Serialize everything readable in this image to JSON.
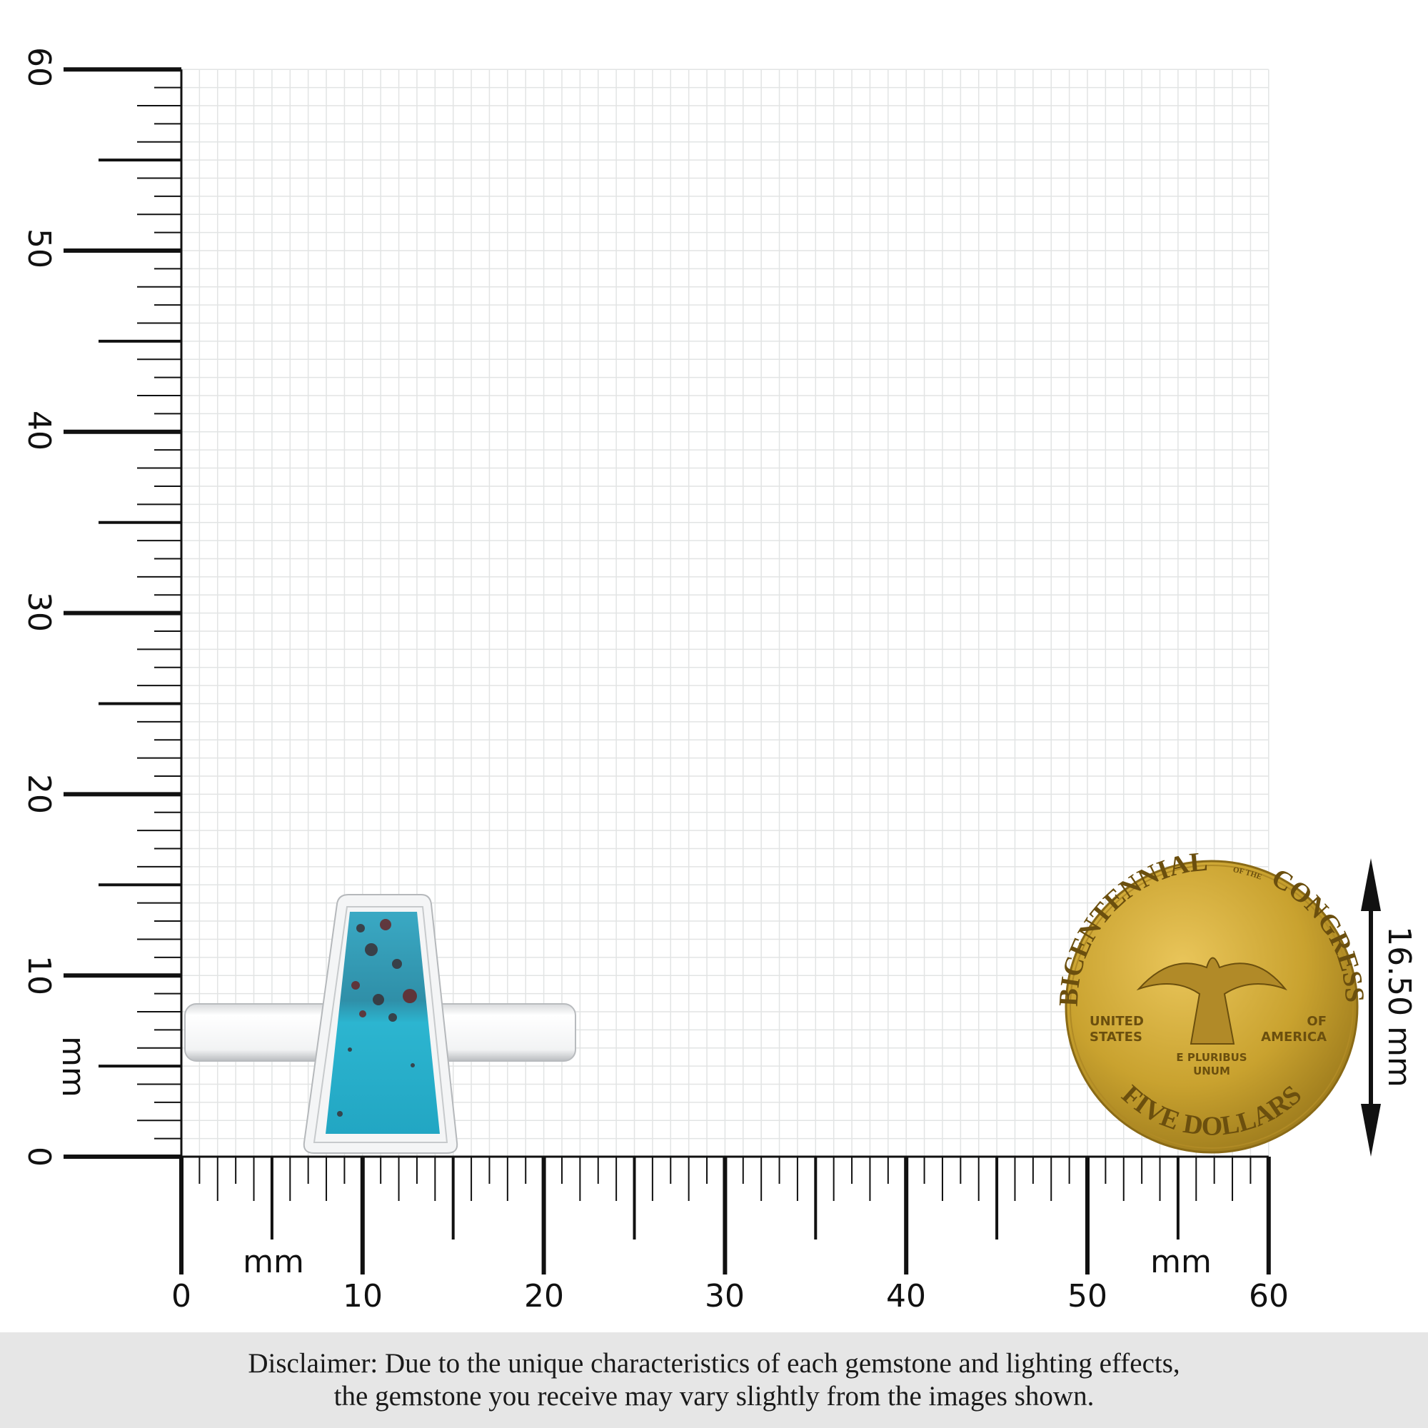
{
  "ruler": {
    "unit": "mm",
    "x_ticks": [
      "0",
      "10",
      "20",
      "30",
      "40",
      "50",
      "60"
    ],
    "y_ticks": [
      "0",
      "10",
      "20",
      "30",
      "40",
      "50",
      "60"
    ],
    "range_mm": [
      0,
      60
    ]
  },
  "dimension": {
    "label": "16.50 mm",
    "value_mm": 16.5
  },
  "coin": {
    "top": "BICENTENNIAL",
    "of_the": "OF THE",
    "congress": "CONGRESS",
    "left": "UNITED STATES",
    "right": "OF AMERICA",
    "motto": "E PLURIBUS UNUM",
    "bottom": "FIVE DOLLARS"
  },
  "colors": {
    "stone": "#2bb0cc",
    "gold": "#c9a22f",
    "grid": "#e2e4e4"
  },
  "disclaimer": {
    "line1": "Disclaimer: Due to the unique characteristics of each gemstone and lighting effects,",
    "line2": "the gemstone you receive may vary slightly from the images shown."
  }
}
